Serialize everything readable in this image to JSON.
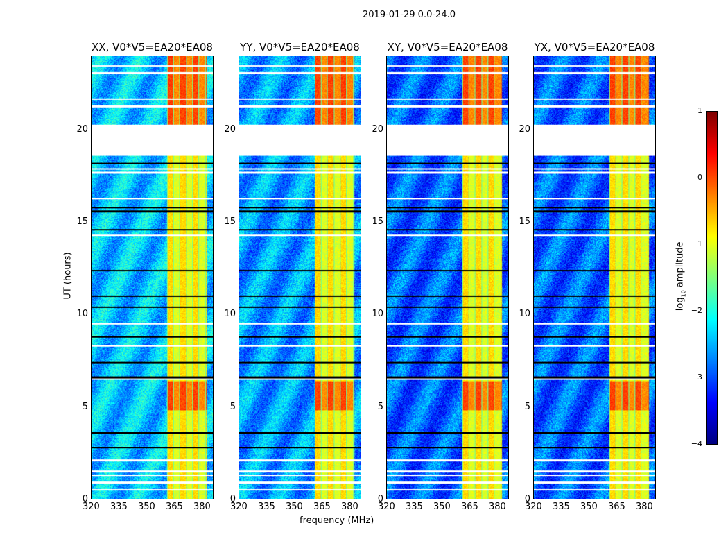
{
  "chart_data": {
    "type": "heatmap",
    "title": "2019-01-29 0.0-24.0",
    "xlabel": "frequency (MHz)",
    "ylabel": "UT (hours)",
    "xlim": [
      320,
      386.4
    ],
    "ylim": [
      0,
      24
    ],
    "xticks": [
      320,
      335,
      350,
      365,
      380
    ],
    "yticks": [
      0,
      5,
      10,
      15,
      20
    ],
    "panels": [
      {
        "title": "XX, V0*V5=EA20*EA08",
        "baseline": -2.4
      },
      {
        "title": "YY, V0*V5=EA20*EA08",
        "baseline": -2.6
      },
      {
        "title": "XY, V0*V5=EA20*EA08",
        "baseline": -2.9
      },
      {
        "title": "YX, V0*V5=EA20*EA08",
        "baseline": -2.9
      }
    ],
    "features": {
      "bright_band_mhz": [
        361,
        383
      ],
      "flag_gap_hours": [
        18.6,
        20.3
      ],
      "high_periods_hours": [
        [
          4.8,
          6.4
        ],
        [
          20.3,
          24
        ]
      ],
      "flagged_rows_hours": [
        0.5,
        0.9,
        1.3,
        1.5,
        2.1,
        2.8,
        3.6,
        6.5,
        6.6,
        7.4,
        8.3,
        8.8,
        9.5,
        10.4,
        11,
        12.4,
        14.3,
        14.6,
        15.6,
        15.8,
        16.3,
        17.7,
        17.9,
        18.2,
        21.3,
        21.7,
        23.1,
        23.5
      ]
    },
    "colorbar": {
      "label": "log10 amplitude",
      "label_main": "log",
      "label_sub": "10",
      "label_rest": " amplitude",
      "range": [
        -4,
        1
      ],
      "ticks": [
        "1",
        "0",
        "−1",
        "−2",
        "−3",
        "−4"
      ],
      "colormap": "jet"
    }
  }
}
